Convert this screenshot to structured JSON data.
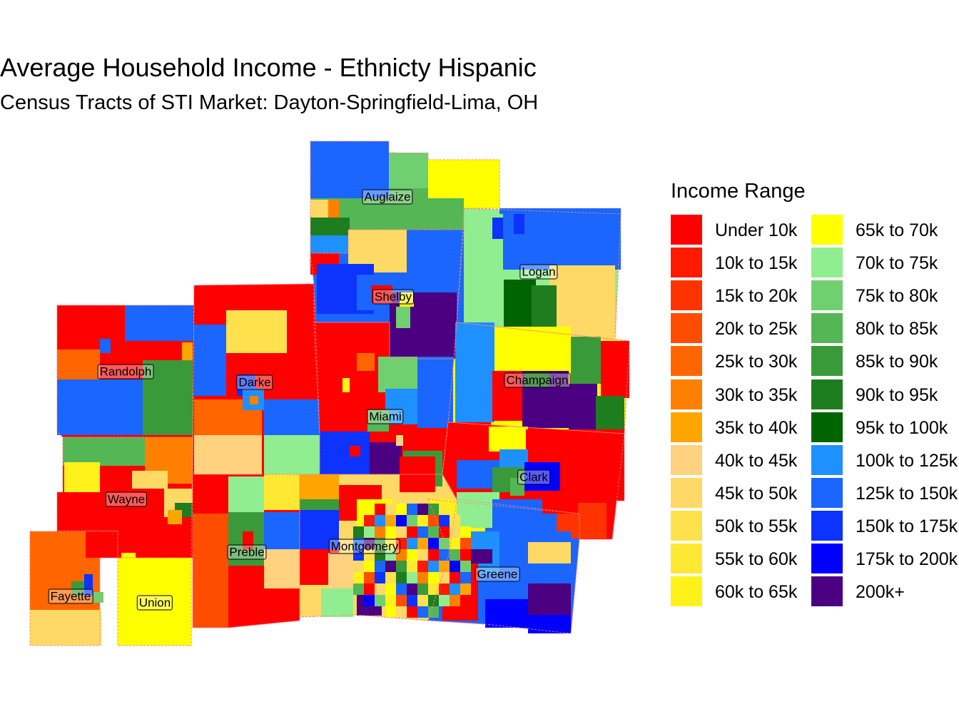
{
  "title": "Average Household Income - Ethnicty Hispanic",
  "subtitle": "Census Tracts of STI Market: Dayton-Springfield-Lima, OH",
  "legend": {
    "title": "Income Range",
    "items": [
      {
        "label": "Under 10k",
        "color": "#ff0000"
      },
      {
        "label": "10k to 15k",
        "color": "#ff1a00"
      },
      {
        "label": "15k to 20k",
        "color": "#ff3300"
      },
      {
        "label": "20k to 25k",
        "color": "#ff4d00"
      },
      {
        "label": "25k to 30k",
        "color": "#ff6600"
      },
      {
        "label": "30k to 35k",
        "color": "#ff8000"
      },
      {
        "label": "35k to 40k",
        "color": "#ffa500"
      },
      {
        "label": "40k to 45k",
        "color": "#ffd27f"
      },
      {
        "label": "45k to 50k",
        "color": "#ffd966"
      },
      {
        "label": "50k to 55k",
        "color": "#ffe14d"
      },
      {
        "label": "55k to 60k",
        "color": "#ffe833"
      },
      {
        "label": "60k to 65k",
        "color": "#fff21a"
      },
      {
        "label": "65k to 70k",
        "color": "#ffff00"
      },
      {
        "label": "70k to 75k",
        "color": "#90ee90"
      },
      {
        "label": "75k to 80k",
        "color": "#70d070"
      },
      {
        "label": "80k to 85k",
        "color": "#55b655"
      },
      {
        "label": "85k to 90k",
        "color": "#3a9a3a"
      },
      {
        "label": "90k to 95k",
        "color": "#1e7d1e"
      },
      {
        "label": "95k to 100k",
        "color": "#006400"
      },
      {
        "label": "100k to 125k",
        "color": "#1e90ff"
      },
      {
        "label": "125k to 150k",
        "color": "#1a66ff"
      },
      {
        "label": "150k to 175k",
        "color": "#0d33ff"
      },
      {
        "label": "175k to 200k",
        "color": "#0000ff"
      },
      {
        "label": "200k+",
        "color": "#4b0082"
      }
    ]
  },
  "counties": [
    {
      "name": "Auglaize",
      "fill": "#55b655"
    },
    {
      "name": "Logan",
      "fill": "#90ee90"
    },
    {
      "name": "Shelby",
      "fill": "#1a66ff"
    },
    {
      "name": "Randolph",
      "fill": "#ff0000"
    },
    {
      "name": "Darke",
      "fill": "#ff0000"
    },
    {
      "name": "Champaign",
      "fill": "#ffff00"
    },
    {
      "name": "Miami",
      "fill": "#ff0000"
    },
    {
      "name": "Clark",
      "fill": "#ff0000"
    },
    {
      "name": "Wayne",
      "fill": "#ff0000"
    },
    {
      "name": "Preble",
      "fill": "#ff0000"
    },
    {
      "name": "Montgomery",
      "fill": "#ffd966"
    },
    {
      "name": "Greene",
      "fill": "#1a66ff"
    },
    {
      "name": "Fayette",
      "fill": "#ff6600"
    },
    {
      "name": "Union",
      "fill": "#ffff00"
    }
  ]
}
